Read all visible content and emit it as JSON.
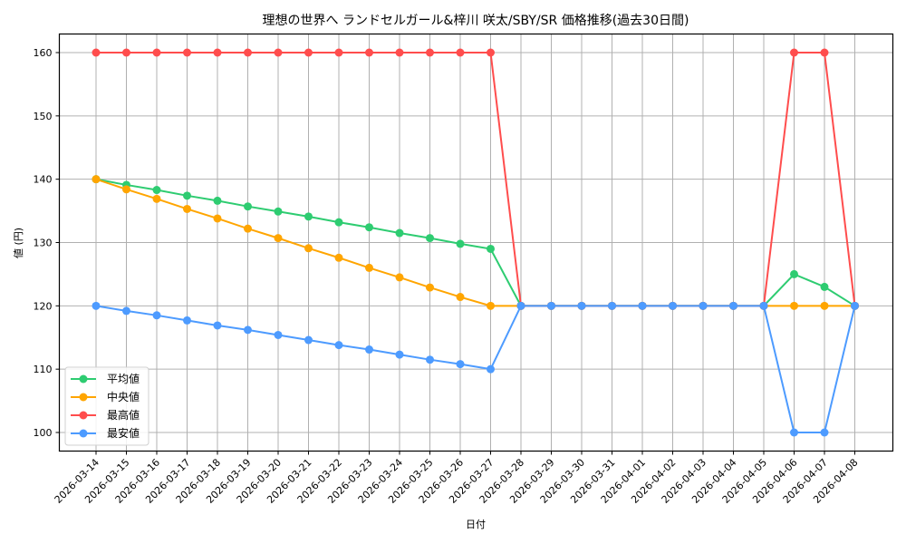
{
  "chart_data": {
    "type": "line",
    "title": "理想の世界へ ランドセルガール&梓川 咲太/SBY/SR 価格推移(過去30日間)",
    "xlabel": "日付",
    "ylabel": "値 (円)",
    "ylim": [
      97,
      163
    ],
    "yticks": [
      100,
      110,
      120,
      130,
      140,
      150,
      160
    ],
    "grid": true,
    "legend_position": "lower left",
    "x": [
      "2026-03-14",
      "2026-03-15",
      "2026-03-16",
      "2026-03-17",
      "2026-03-18",
      "2026-03-19",
      "2026-03-20",
      "2026-03-21",
      "2026-03-22",
      "2026-03-23",
      "2026-03-24",
      "2026-03-25",
      "2026-03-26",
      "2026-03-27",
      "2026-03-28",
      "2026-03-29",
      "2026-03-30",
      "2026-03-31",
      "2026-04-01",
      "2026-04-02",
      "2026-04-03",
      "2026-04-04",
      "2026-04-05",
      "2026-04-06",
      "2026-04-07",
      "2026-04-08"
    ],
    "series": [
      {
        "name": "平均値",
        "color": "#2ecc71",
        "values": [
          140,
          139.1,
          138.3,
          137.4,
          136.6,
          135.7,
          134.9,
          134.1,
          133.2,
          132.4,
          131.5,
          130.7,
          129.8,
          129.0,
          120,
          120,
          120,
          120,
          120,
          120,
          120,
          120,
          120,
          125,
          123,
          120
        ]
      },
      {
        "name": "中央値",
        "color": "#ffa500",
        "values": [
          140,
          138.4,
          136.9,
          135.3,
          133.8,
          132.2,
          130.7,
          129.1,
          127.6,
          126.0,
          124.5,
          122.9,
          121.4,
          120,
          120,
          120,
          120,
          120,
          120,
          120,
          120,
          120,
          120,
          120,
          120,
          120
        ]
      },
      {
        "name": "最高値",
        "color": "#ff4d4d",
        "values": [
          160,
          160,
          160,
          160,
          160,
          160,
          160,
          160,
          160,
          160,
          160,
          160,
          160,
          160,
          120,
          120,
          120,
          120,
          120,
          120,
          120,
          120,
          120,
          160,
          160,
          120
        ]
      },
      {
        "name": "最安値",
        "color": "#4d9bff",
        "values": [
          120,
          119.2,
          118.5,
          117.7,
          116.9,
          116.2,
          115.4,
          114.6,
          113.8,
          113.1,
          112.3,
          111.5,
          110.8,
          110,
          120,
          120,
          120,
          120,
          120,
          120,
          120,
          120,
          120,
          100,
          100,
          120
        ]
      }
    ]
  }
}
